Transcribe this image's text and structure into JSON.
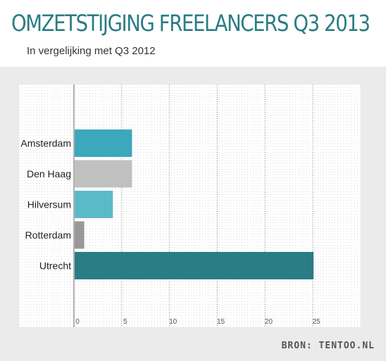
{
  "header": {
    "title": "OMZETSTIJGING  FREELANCERS Q3 2013",
    "subtitle": "In vergelijking met Q3 2012"
  },
  "footer": {
    "source": "BRON: TENTOO.NL"
  },
  "colors": {
    "title": "#2a7d84",
    "plot_background": "#ffffff",
    "page_background": "#ebebeb"
  },
  "chart_data": {
    "type": "bar",
    "orientation": "horizontal",
    "title": "",
    "xlabel": "",
    "ylabel": "",
    "categories": [
      "Amsterdam",
      "Den Haag",
      "Hilversum",
      "Rotterdam",
      "Utrecht"
    ],
    "values": [
      6,
      6,
      4,
      1,
      25
    ],
    "bar_colors": [
      "#3ba8bb",
      "#c0c0c0",
      "#5bbac8",
      "#999999",
      "#2a7d84"
    ],
    "xlim": [
      0,
      30
    ],
    "x_ticks": [
      "0",
      "5",
      "10",
      "15",
      "20",
      "25"
    ],
    "grid": true,
    "legend": "none"
  }
}
